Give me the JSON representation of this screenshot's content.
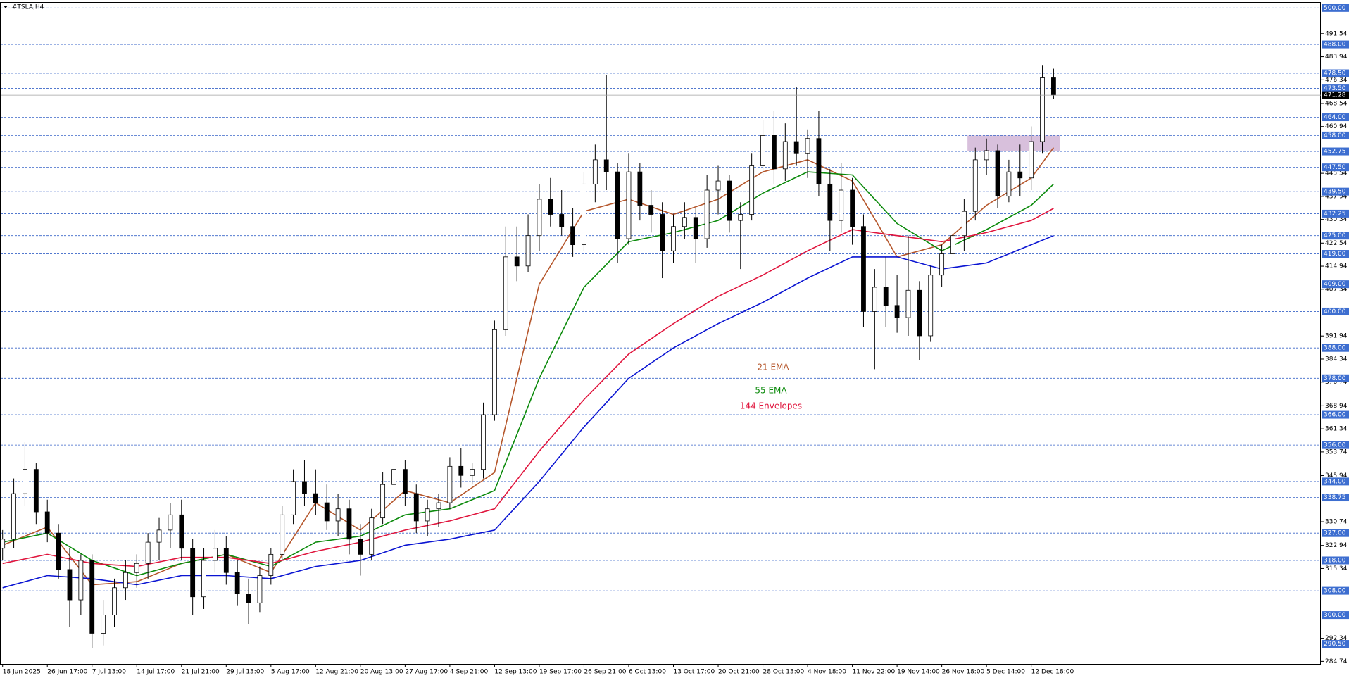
{
  "chart_data": {
    "type": "candlestick",
    "title": ".#TSLA,H4",
    "ylim": [
      283.9,
      501.7
    ],
    "yticks": [
      491.54,
      483.94,
      476.34,
      468.54,
      460.94,
      445.54,
      437.94,
      430.34,
      422.54,
      414.94,
      407.34,
      391.94,
      384.34,
      376.74,
      368.94,
      361.34,
      353.74,
      345.94,
      330.74,
      322.94,
      315.34,
      292.34,
      284.74
    ],
    "levels": [
      {
        "value": 500,
        "label": "500.00"
      },
      {
        "value": 488,
        "label": "488.00"
      },
      {
        "value": 478.5,
        "label": "478.50"
      },
      {
        "value": 473.5,
        "label": "473.50"
      },
      {
        "value": 464,
        "label": "464.00"
      },
      {
        "value": 458,
        "label": "458.00"
      },
      452.75,
      {
        "value": 447.5,
        "label": "447.50"
      },
      {
        "value": 439.5,
        "label": "439.50"
      },
      432.25,
      {
        "value": 425,
        "label": "425.00"
      },
      {
        "value": 419,
        "label": "419.00"
      },
      {
        "value": 409,
        "label": "409.00"
      },
      {
        "value": 400,
        "label": "400.00"
      },
      {
        "value": 388,
        "label": "388.00"
      },
      {
        "value": 378,
        "label": "378.00"
      },
      {
        "value": 366,
        "label": "366.00"
      },
      {
        "value": 356,
        "label": "356.00"
      },
      {
        "value": 344,
        "label": "344.00"
      },
      338.75,
      {
        "value": 327,
        "label": "327.00"
      },
      {
        "value": 318,
        "label": "318.00"
      },
      {
        "value": 308,
        "label": "308.00"
      },
      {
        "value": 300,
        "label": "300.00"
      },
      {
        "value": 290.5,
        "label": "290.50"
      }
    ],
    "categories": [
      "18 Jun 2025",
      null,
      null,
      null,
      "26 Jun 17:00",
      null,
      null,
      null,
      "7 Jul 13:00",
      null,
      null,
      null,
      "14 Jul 17:00",
      null,
      null,
      null,
      "21 Jul 21:00",
      null,
      null,
      null,
      "29 Jul 13:00",
      null,
      null,
      null,
      "5 Aug 17:00",
      null,
      null,
      null,
      "12 Aug 21:00",
      null,
      null,
      null,
      "20 Aug 13:00",
      null,
      null,
      null,
      "27 Aug 17:00",
      null,
      null,
      null,
      "4 Sep 21:00",
      null,
      null,
      null,
      "12 Sep 13:00",
      null,
      null,
      null,
      "19 Sep 17:00",
      null,
      null,
      null,
      "26 Sep 21:00",
      null,
      null,
      null,
      "6 Oct 13:00",
      null,
      null,
      null,
      "13 Oct 17:00",
      null,
      null,
      null,
      "20 Oct 21:00",
      null,
      null,
      null,
      "28 Oct 13:00",
      null,
      null,
      null,
      "4 Nov 18:00",
      null,
      null,
      null,
      "11 Nov 22:00",
      null,
      null,
      null,
      "19 Nov 14:00",
      null,
      null,
      null,
      "26 Nov 18:00",
      null,
      null,
      null,
      "5 Dec 14:00",
      null,
      null,
      null,
      "12 Dec 18:00",
      null,
      null
    ],
    "ohlc": [
      [
        322,
        328,
        318,
        325
      ],
      [
        325,
        345,
        322,
        340
      ],
      [
        340,
        357,
        336,
        348
      ],
      [
        348,
        350,
        330,
        334
      ],
      [
        334,
        338,
        324,
        327
      ],
      [
        327,
        330,
        312,
        315
      ],
      [
        315,
        322,
        296,
        305
      ],
      [
        305,
        320,
        300,
        318
      ],
      [
        318,
        320,
        289,
        294
      ],
      [
        294,
        305,
        290,
        300
      ],
      [
        300,
        312,
        296,
        309
      ],
      [
        309,
        318,
        305,
        314
      ],
      [
        314,
        320,
        309,
        317
      ],
      [
        317,
        327,
        312,
        324
      ],
      [
        324,
        332,
        318,
        328
      ],
      [
        328,
        337,
        322,
        333
      ],
      [
        333,
        338,
        318,
        322
      ],
      [
        322,
        325,
        300,
        306
      ],
      [
        306,
        322,
        302,
        318
      ],
      [
        318,
        328,
        314,
        322
      ],
      [
        322,
        326,
        310,
        314
      ],
      [
        314,
        318,
        303,
        307
      ],
      [
        307,
        312,
        297,
        304
      ],
      [
        304,
        316,
        301,
        313
      ],
      [
        313,
        322,
        310,
        320
      ],
      [
        320,
        336,
        318,
        333
      ],
      [
        333,
        348,
        330,
        344
      ],
      [
        344,
        351,
        336,
        340
      ],
      [
        340,
        348,
        333,
        337
      ],
      [
        337,
        343,
        328,
        331
      ],
      [
        331,
        340,
        326,
        335
      ],
      [
        335,
        338,
        320,
        325
      ],
      [
        325,
        330,
        313,
        320
      ],
      [
        320,
        335,
        318,
        332
      ],
      [
        332,
        347,
        330,
        343
      ],
      [
        343,
        353,
        338,
        348
      ],
      [
        348,
        351,
        336,
        340
      ],
      [
        340,
        343,
        327,
        331
      ],
      [
        331,
        338,
        326,
        335
      ],
      [
        335,
        340,
        329,
        337
      ],
      [
        337,
        352,
        335,
        349
      ],
      [
        349,
        355,
        342,
        346
      ],
      [
        346,
        350,
        343,
        348
      ],
      [
        348,
        370,
        345,
        366
      ],
      [
        366,
        397,
        364,
        394
      ],
      [
        394,
        428,
        392,
        418
      ],
      [
        418,
        428,
        410,
        415
      ],
      [
        415,
        432,
        413,
        425
      ],
      [
        425,
        442,
        420,
        437
      ],
      [
        437,
        444,
        428,
        432
      ],
      [
        432,
        440,
        425,
        428
      ],
      [
        428,
        434,
        418,
        422
      ],
      [
        422,
        446,
        420,
        442
      ],
      [
        442,
        455,
        436,
        450
      ],
      [
        450,
        478,
        440,
        446
      ],
      [
        446,
        449,
        416,
        424
      ],
      [
        424,
        452,
        422,
        446
      ],
      [
        446,
        449,
        430,
        435
      ],
      [
        435,
        440,
        426,
        432
      ],
      [
        432,
        436,
        411,
        420
      ],
      [
        420,
        432,
        416,
        428
      ],
      [
        428,
        436,
        424,
        431
      ],
      [
        431,
        434,
        416,
        424
      ],
      [
        424,
        445,
        421,
        440
      ],
      [
        440,
        448,
        432,
        443
      ],
      [
        443,
        445,
        426,
        430
      ],
      [
        430,
        436,
        414,
        432
      ],
      [
        432,
        452,
        430,
        448
      ],
      [
        448,
        463,
        445,
        458
      ],
      [
        458,
        466,
        442,
        447
      ],
      [
        447,
        462,
        443,
        456
      ],
      [
        456,
        474,
        448,
        452
      ],
      [
        452,
        460,
        444,
        457
      ],
      [
        457,
        466,
        438,
        442
      ],
      [
        442,
        447,
        420,
        430
      ],
      [
        430,
        449,
        426,
        440
      ],
      [
        440,
        444,
        422,
        428
      ],
      [
        428,
        432,
        395,
        400
      ],
      [
        400,
        414,
        381,
        408
      ],
      [
        408,
        418,
        395,
        402
      ],
      [
        402,
        412,
        393,
        398
      ],
      [
        398,
        425,
        392,
        407
      ],
      [
        407,
        410,
        384,
        392
      ],
      [
        392,
        415,
        390,
        412
      ],
      [
        412,
        422,
        408,
        419
      ],
      [
        419,
        428,
        416,
        425
      ],
      [
        425,
        437,
        420,
        433
      ],
      [
        433,
        454,
        430,
        450
      ],
      [
        450,
        457,
        445,
        453
      ],
      [
        453,
        455,
        434,
        438
      ],
      [
        438,
        450,
        436,
        446
      ],
      [
        446,
        455,
        438,
        444
      ],
      [
        444,
        461,
        440,
        456
      ],
      [
        456,
        481,
        452,
        477
      ],
      [
        477,
        480,
        470,
        471.28
      ]
    ],
    "zone": {
      "x": [
        86.3,
        94.6
      ],
      "y": [
        452.75,
        458
      ],
      "color": "#d8c0dc"
    },
    "indicators": {
      "x": [
        0,
        4,
        8,
        12,
        16,
        20,
        24,
        28,
        32,
        36,
        40,
        44,
        48,
        52,
        56,
        60,
        64,
        68,
        72,
        76,
        80,
        84,
        88,
        92,
        94
      ],
      "series": [
        {
          "name": "21 EMA",
          "color": "#b5562b",
          "values": [
            323,
            329,
            310,
            311,
            317,
            320,
            314,
            337,
            328,
            341,
            337,
            347,
            409,
            433,
            437,
            432,
            437,
            446,
            450,
            443,
            418,
            422,
            435,
            444,
            454
          ]
        },
        {
          "name": "55 EMA",
          "color": "#0b8a0b",
          "values": [
            324,
            327,
            318,
            313,
            317,
            320,
            316,
            324,
            326,
            333,
            335,
            341,
            378,
            408,
            423,
            426,
            430,
            439,
            446,
            445,
            429,
            420,
            427,
            435,
            442
          ]
        },
        {
          "name": "144 Envelopes",
          "color": "#e0143c",
          "values": [
            317,
            320,
            317,
            316,
            319,
            319,
            317,
            321,
            324,
            328,
            331,
            335,
            354,
            371,
            386,
            396,
            405,
            412,
            420,
            427,
            425,
            423,
            426,
            430,
            434
          ]
        },
        {
          "color": "#0a14d2",
          "values": [
            309,
            313,
            312,
            310,
            313,
            313,
            312,
            316,
            318,
            323,
            325,
            328,
            344,
            362,
            378,
            388,
            396,
            403,
            411,
            418,
            418,
            414,
            416,
            422,
            425
          ]
        }
      ]
    }
  }
}
